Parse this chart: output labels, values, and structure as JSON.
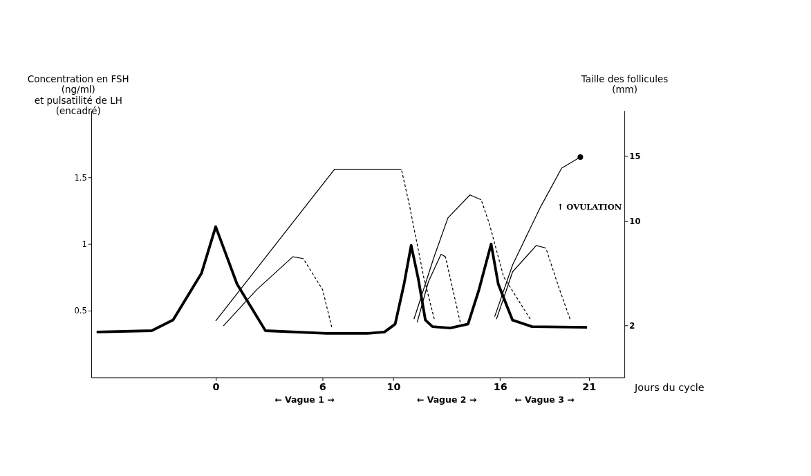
{
  "chart_data": {
    "type": "line",
    "xlabel": "Jours du cycle",
    "ylabel": "Concentration en FSH\n(ng/ml)\net pulsatilité de LH\n(encadré)",
    "y2label": "Taille des follicules\n(mm)",
    "xlim": [
      -7,
      23
    ],
    "xticks": [
      0,
      6,
      10,
      16,
      21
    ],
    "ylim": [
      0,
      2
    ],
    "yticks": [
      0.5,
      1,
      1.5
    ],
    "y2lim": [
      -2,
      18.5
    ],
    "y2ticks": [
      2,
      10,
      15
    ],
    "grid": false,
    "annotations": [
      "← Vague 1 →",
      "← Vague 2 →",
      "← Vague 3 →",
      "↑ OVULATION"
    ],
    "series": [
      {
        "color": "#000000",
        "line_style": "solid",
        "x": [
          -6.7,
          -3.6,
          -2.4,
          -0.8,
          0,
          1.2,
          2.8,
          6.25,
          8.55,
          9.5,
          10.1,
          10.6,
          11.0,
          11.4,
          11.8,
          12.2,
          13.2,
          14.2,
          14.8,
          15.5,
          15.9,
          16.7,
          17.8,
          20.9
        ],
        "values": [
          0.34,
          0.35,
          0.43,
          0.78,
          1.13,
          0.7,
          0.35,
          0.33,
          0.33,
          0.34,
          0.4,
          0.7,
          0.99,
          0.74,
          0.43,
          0.38,
          0.37,
          0.4,
          0.65,
          1.0,
          0.7,
          0.43,
          0.38,
          0.375
        ]
      },
      {
        "color": "#000000",
        "axis": "y2",
        "line_style": "solid",
        "x": [
          0,
          6.69,
          10.45
        ],
        "values": [
          2.34,
          14.0,
          14.0
        ]
      },
      {
        "color": "#000000",
        "axis": "y2",
        "line_style": "dashed",
        "x": [
          10.45,
          10.9,
          11.7,
          12.3
        ],
        "values": [
          14.0,
          11.25,
          5.74,
          2.48
        ]
      },
      {
        "color": "#000000",
        "axis": "y2",
        "line_style": "solid",
        "x": [
          0.43,
          2.3,
          4.34,
          4.93
        ],
        "values": [
          1.95,
          4.73,
          7.27,
          7.13
        ]
      },
      {
        "color": "#000000",
        "axis": "y2",
        "line_style": "dashed",
        "x": [
          4.93,
          6.02,
          6.53
        ],
        "values": [
          7.13,
          4.73,
          1.86
        ]
      },
      {
        "color": "#000000",
        "axis": "y2",
        "line_style": "solid",
        "x": [
          11.16,
          12.28,
          13.07,
          14.31,
          14.94
        ],
        "values": [
          2.48,
          7.22,
          10.26,
          12.02,
          11.65
        ]
      },
      {
        "color": "#000000",
        "axis": "y2",
        "line_style": "dashed",
        "x": [
          14.94,
          15.41,
          16.2,
          17.7
        ],
        "values": [
          11.65,
          9.76,
          5.74,
          2.48
        ]
      },
      {
        "color": "#000000",
        "axis": "y2",
        "line_style": "solid",
        "x": [
          11.34,
          11.97,
          12.68,
          12.93
        ],
        "values": [
          2.24,
          5.35,
          7.46,
          7.27
        ]
      },
      {
        "color": "#000000",
        "axis": "y2",
        "line_style": "dashed",
        "x": [
          12.93,
          13.76
        ],
        "values": [
          7.27,
          2.24
        ]
      },
      {
        "color": "#000000",
        "axis": "y2",
        "line_style": "solid",
        "x": [
          15.7,
          16.71,
          18.28,
          19.47,
          20.52
        ],
        "values": [
          2.67,
          6.65,
          11.1,
          14.08,
          14.93
        ]
      },
      {
        "color": "#000000",
        "axis": "y2",
        "line_style": "solid",
        "x": [
          15.8,
          16.71,
          18.04,
          18.58
        ],
        "values": [
          2.48,
          6.12,
          8.13,
          7.94
        ]
      },
      {
        "color": "#000000",
        "axis": "y2",
        "line_style": "dashed",
        "x": [
          18.58,
          19.33,
          19.94
        ],
        "values": [
          7.94,
          4.83,
          2.48
        ]
      },
      {
        "type": "scatter",
        "marker": "circle",
        "color": "#000000",
        "axis": "y2",
        "x": [
          20.52
        ],
        "values": [
          14.93
        ]
      }
    ]
  }
}
